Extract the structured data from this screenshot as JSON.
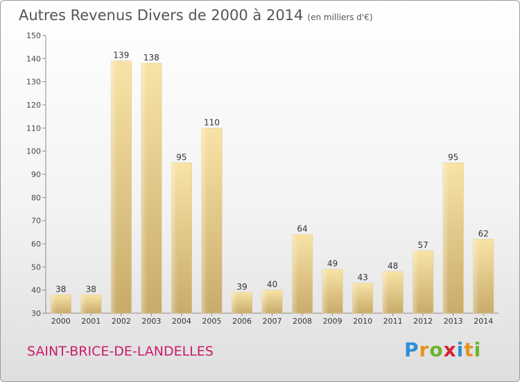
{
  "header": {
    "title": "Autres Revenus Divers de 2000 à 2014",
    "subtitle": "(en milliers d'€)"
  },
  "footer": {
    "location": "SAINT-BRICE-DE-LANDELLES",
    "brand_letters": [
      "P",
      "r",
      "o",
      "x",
      "i",
      "t",
      "i"
    ],
    "brand_colors": [
      "#2f8fd6",
      "#e8931d",
      "#6bb52c",
      "#d6233b",
      "#2f8fd6",
      "#e8931d",
      "#6bb52c"
    ]
  },
  "chart_data": {
    "type": "bar",
    "categories": [
      "2000",
      "2001",
      "2002",
      "2003",
      "2004",
      "2005",
      "2006",
      "2007",
      "2008",
      "2009",
      "2010",
      "2011",
      "2012",
      "2013",
      "2014"
    ],
    "values": [
      38,
      38,
      139,
      138,
      95,
      110,
      39,
      40,
      64,
      49,
      43,
      48,
      57,
      95,
      62
    ],
    "ylim": [
      30,
      150
    ],
    "yticks": [
      30,
      40,
      50,
      60,
      70,
      80,
      90,
      100,
      110,
      120,
      130,
      140,
      150
    ],
    "grid": false,
    "bar_color": "#e8cc84"
  }
}
